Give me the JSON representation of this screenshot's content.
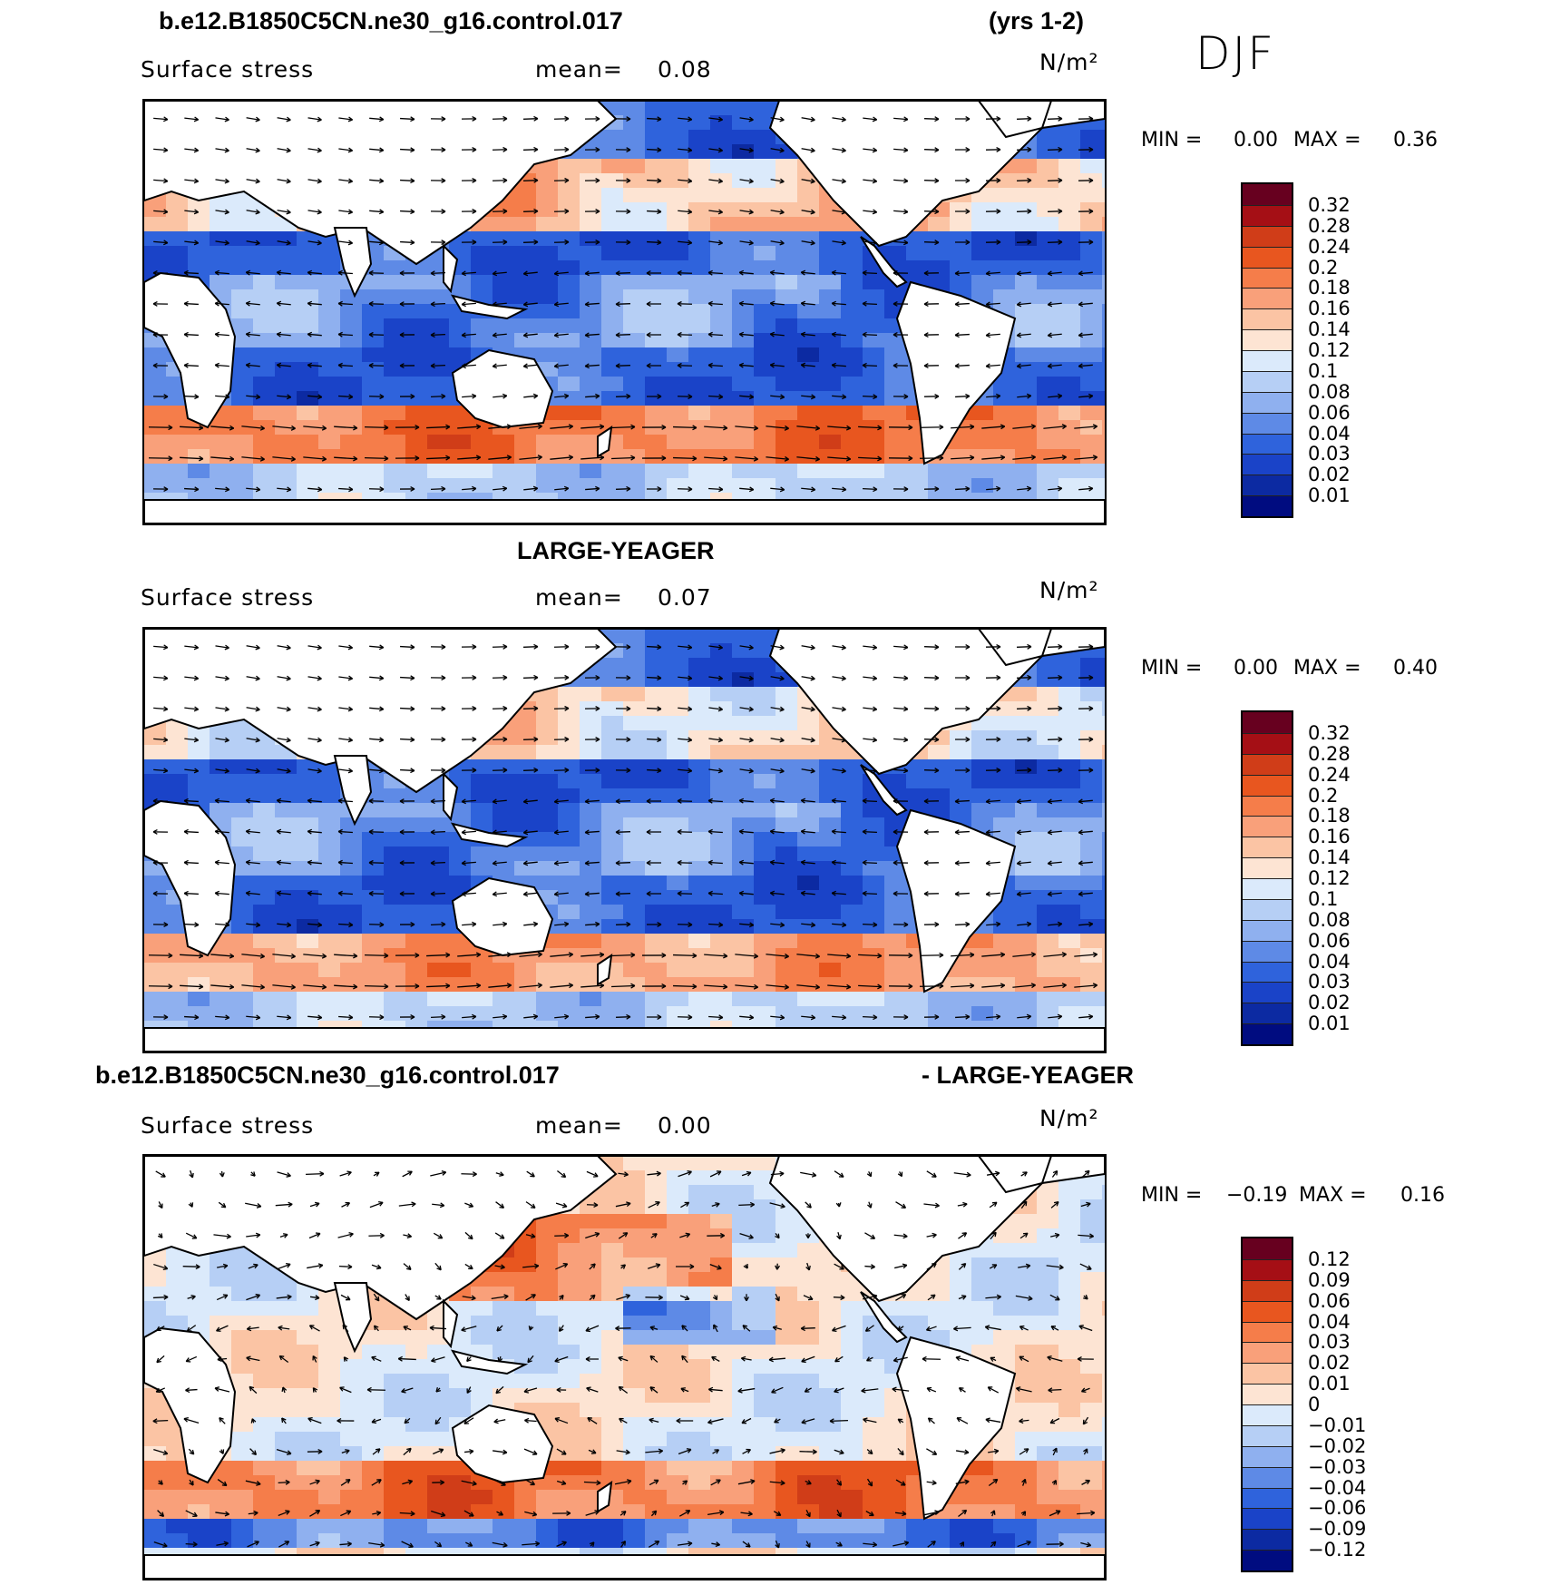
{
  "header": {
    "case_title": "b.e12.B1850C5CN.ne30_g16.control.017",
    "years": "(yrs 1-2)",
    "season": "DJF"
  },
  "palette_warm": [
    "#67001f",
    "#a50f15",
    "#d03d18",
    "#e8561f",
    "#f57d4a",
    "#f9a07a",
    "#fbc4a4",
    "#fde4d3"
  ],
  "palette_cool": [
    "#dbeafb",
    "#b6cff5",
    "#8fb0ef",
    "#5e8ae6",
    "#2f63dc",
    "#1a43c8",
    "#0c2aa2",
    "#000c80"
  ],
  "panels": [
    {
      "heading": "",
      "heading_right": "",
      "variable": "Surface stress",
      "mean_label": "mean=",
      "mean_value": "0.08",
      "units": "N/m²",
      "min_label": "MIN =",
      "min_value": "0.00",
      "max_label": "MAX =",
      "max_value": "0.36",
      "colorbar_levels": [
        "0.32",
        "0.28",
        "0.24",
        "0.2",
        "0.18",
        "0.16",
        "0.14",
        "0.12",
        "0.1",
        "0.08",
        "0.06",
        "0.04",
        "0.03",
        "0.02",
        "0.01"
      ],
      "field_style": "model"
    },
    {
      "heading": "LARGE-YEAGER",
      "heading_right": "",
      "variable": "Surface stress",
      "mean_label": "mean=",
      "mean_value": "0.07",
      "units": "N/m²",
      "min_label": "MIN =",
      "min_value": "0.00",
      "max_label": "MAX =",
      "max_value": "0.40",
      "colorbar_levels": [
        "0.32",
        "0.28",
        "0.24",
        "0.2",
        "0.18",
        "0.16",
        "0.14",
        "0.12",
        "0.1",
        "0.08",
        "0.06",
        "0.04",
        "0.03",
        "0.02",
        "0.01"
      ],
      "field_style": "obs"
    },
    {
      "heading": "b.e12.B1850C5CN.ne30_g16.control.017",
      "heading_right": "- LARGE-YEAGER",
      "variable": "Surface stress",
      "mean_label": "mean=",
      "mean_value": "0.00",
      "units": "N/m²",
      "min_label": "MIN =",
      "min_value": "−0.19",
      "max_label": "MAX =",
      "max_value": "0.16",
      "colorbar_levels": [
        "0.12",
        "0.09",
        "0.06",
        "0.04",
        "0.03",
        "0.02",
        "0.01",
        "0",
        "−0.01",
        "−0.02",
        "−0.03",
        "−0.04",
        "−0.06",
        "−0.09",
        "−0.12"
      ],
      "field_style": "diff"
    }
  ]
}
